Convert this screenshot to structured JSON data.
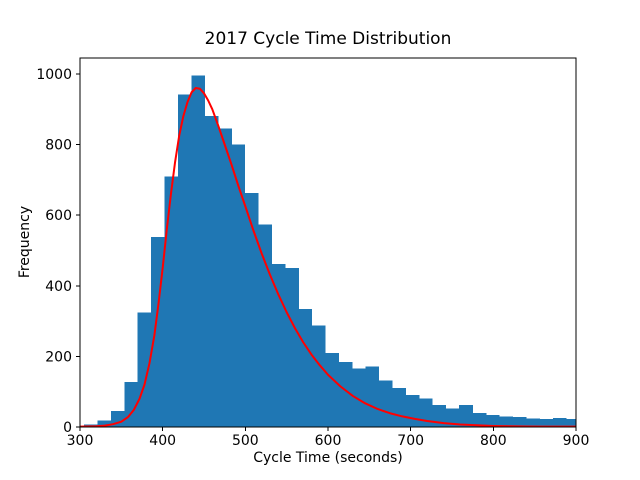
{
  "colors": {
    "bar_fill": "#1f77b4",
    "curve_stroke": "#ff0000",
    "axis_stroke": "#000000",
    "background": "#ffffff",
    "text": "#000000"
  },
  "chart_data": {
    "type": "bar",
    "subtype": "histogram-with-fit-curve",
    "title": "2017 Cycle Time Distribution",
    "xlabel": "Cycle Time (seconds)",
    "ylabel": "Frequency",
    "xlim": [
      300,
      900
    ],
    "ylim": [
      0,
      1045
    ],
    "xticks": [
      300,
      400,
      500,
      600,
      700,
      800,
      900
    ],
    "yticks": [
      0,
      200,
      400,
      600,
      800,
      1000
    ],
    "grid": false,
    "legend": "none",
    "histogram": {
      "bin_start": 305,
      "bin_width": 16.2,
      "frequencies": [
        7,
        18,
        46,
        127,
        324,
        538,
        710,
        941,
        995,
        881,
        846,
        800,
        663,
        574,
        461,
        450,
        334,
        287,
        210,
        184,
        165,
        172,
        132,
        110,
        90,
        81,
        62,
        53,
        62,
        39,
        34,
        30,
        28,
        24,
        22,
        26,
        22
      ]
    },
    "fit_curve": {
      "name": "fitted-distribution-curve",
      "x": [
        300,
        320,
        330,
        340,
        350,
        358,
        365,
        372,
        378,
        384,
        390,
        395,
        400,
        405,
        410,
        415,
        420,
        425,
        430,
        435,
        440,
        445,
        450,
        455,
        460,
        467,
        475,
        483,
        492,
        500,
        510,
        520,
        530,
        540,
        550,
        560,
        570,
        580,
        590,
        600,
        615,
        630,
        645,
        660,
        675,
        690,
        705,
        720,
        740,
        760,
        780,
        800,
        820,
        840,
        860,
        880,
        900
      ],
      "y": [
        1,
        2,
        4,
        8,
        15,
        28,
        48,
        80,
        120,
        180,
        260,
        350,
        450,
        560,
        660,
        750,
        825,
        880,
        920,
        948,
        960,
        958,
        945,
        925,
        900,
        855,
        800,
        745,
        680,
        625,
        555,
        490,
        430,
        375,
        325,
        280,
        240,
        205,
        175,
        148,
        115,
        88,
        67,
        51,
        39,
        30,
        23,
        17,
        11,
        7,
        5,
        3,
        2,
        1.5,
        1,
        1,
        1
      ]
    }
  }
}
